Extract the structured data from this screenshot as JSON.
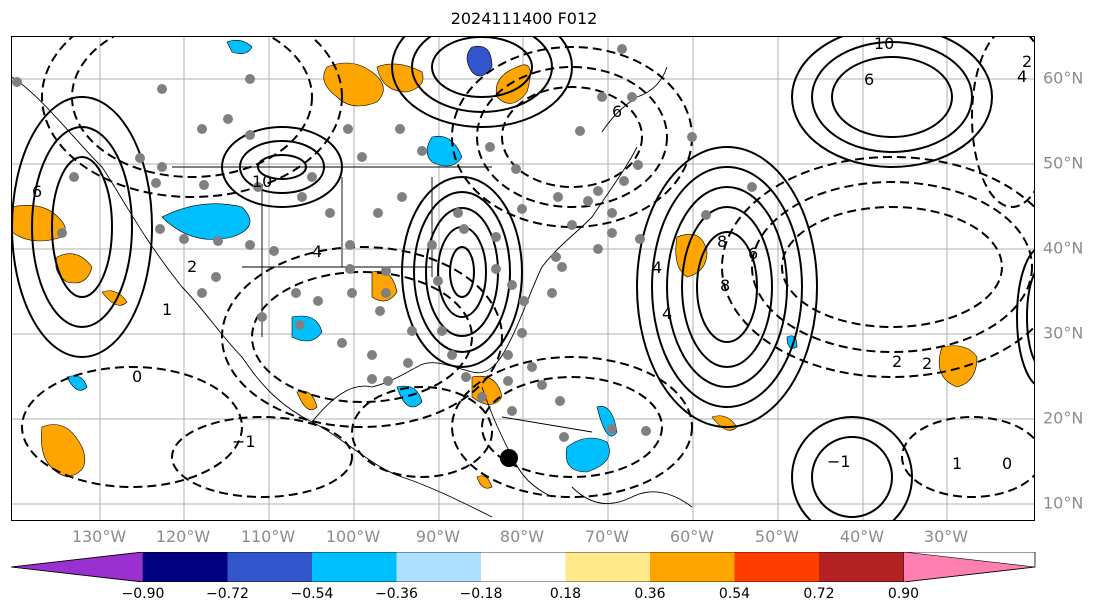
{
  "title": "2024111400 F012",
  "lon_labels": [
    "130°W",
    "120°W",
    "110°W",
    "100°W",
    "90°W",
    "80°W",
    "70°W",
    "60°W",
    "50°W",
    "40°W",
    "30°W"
  ],
  "lat_labels": [
    "60°N",
    "50°N",
    "40°N",
    "30°N",
    "20°N",
    "10°N"
  ],
  "colorbar": {
    "ticks": [
      "−0.90",
      "−0.72",
      "−0.54",
      "−0.36",
      "−0.18",
      "0.18",
      "0.36",
      "0.54",
      "0.72",
      "0.90"
    ],
    "colors": [
      "#9b30d0",
      "#000080",
      "#3355cc",
      "#00bfff",
      "#aee0ff",
      "#ffffff",
      "#ffe98a",
      "#ffa500",
      "#ff3d00",
      "#b22222",
      "#ff80b0"
    ]
  },
  "contour_labels": [
    "10",
    "6",
    "4",
    "2",
    "1",
    "8",
    "−1",
    "2",
    "4",
    "6",
    "8",
    "10",
    "6",
    "4",
    "2",
    "0",
    "−1",
    "1",
    "0",
    "2",
    "4",
    "6"
  ],
  "marker": "storm-center-dot"
}
